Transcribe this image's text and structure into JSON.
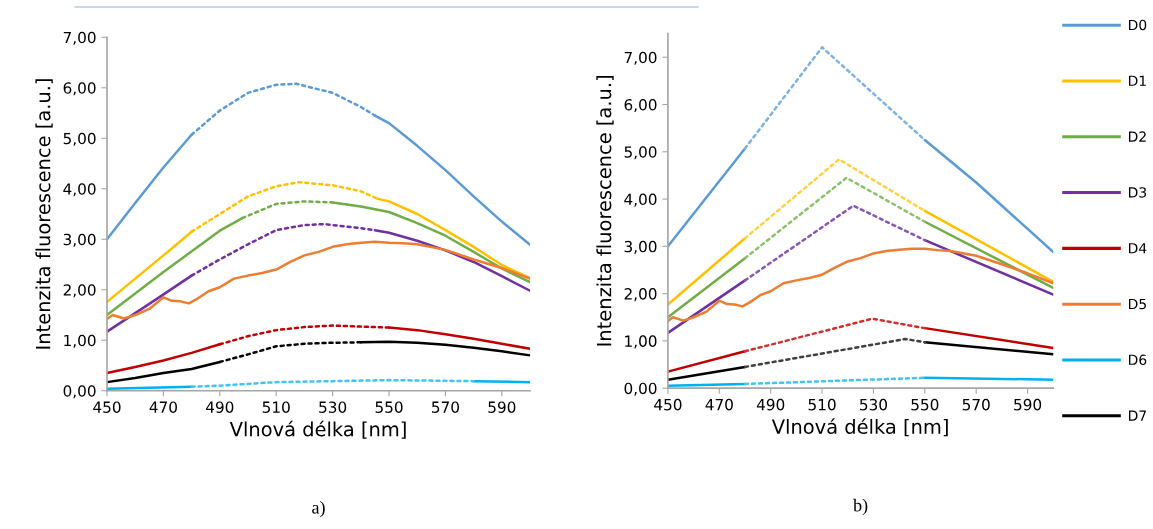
{
  "chart_data": [
    {
      "type": "line",
      "xlabel": "Vlnová délka [nm]",
      "ylabel": "Intenzita fluorescence [a.u.]",
      "annotations": [
        "a)"
      ],
      "xlim": [
        450,
        600
      ],
      "xticks": [
        450,
        470,
        490,
        510,
        530,
        550,
        570,
        590
      ],
      "ylim": [
        0,
        7
      ],
      "yticks": [
        {
          "value": 0,
          "label": "0,00"
        },
        {
          "value": 1,
          "label": "1,00"
        },
        {
          "value": 2,
          "label": "2,00"
        },
        {
          "value": 3,
          "label": "3,00"
        },
        {
          "value": 4,
          "label": "4,00"
        },
        {
          "value": 5,
          "label": "5,00"
        },
        {
          "value": 6,
          "label": "6,00"
        },
        {
          "value": 7,
          "label": "7,00"
        }
      ],
      "grid": false,
      "legend": false,
      "marker": "none",
      "line_style": "solid",
      "series": [
        {
          "color": "#5b9bd5",
          "x": [
            450,
            460,
            470,
            480,
            null,
            545,
            550,
            560,
            570,
            580,
            590,
            600
          ],
          "values": [
            3.0,
            3.72,
            4.42,
            5.07,
            null,
            5.45,
            5.3,
            4.85,
            4.37,
            3.85,
            3.35,
            2.89
          ]
        },
        {
          "color": "#5b9bd5",
          "line_style": "dotted",
          "x": [
            480,
            490,
            500,
            510,
            517,
            530,
            540,
            545
          ],
          "values": [
            5.07,
            5.55,
            5.9,
            6.06,
            6.08,
            5.9,
            5.62,
            5.45
          ]
        },
        {
          "color": "#ffc000",
          "x": [
            450,
            460,
            470,
            480,
            null,
            546,
            550,
            560,
            570,
            580,
            590,
            600
          ],
          "values": [
            1.76,
            2.22,
            2.68,
            3.15,
            null,
            3.8,
            3.75,
            3.5,
            3.18,
            2.85,
            2.49,
            2.23
          ]
        },
        {
          "color": "#ffc000",
          "line_style": "dotted",
          "x": [
            480,
            490,
            500,
            510,
            518,
            530,
            540,
            546
          ],
          "values": [
            3.15,
            3.5,
            3.85,
            4.05,
            4.13,
            4.07,
            3.95,
            3.8
          ]
        },
        {
          "color": "#70ad47",
          "x": [
            450,
            470,
            490,
            498,
            null,
            530,
            540,
            550,
            560,
            570,
            580,
            590,
            600
          ],
          "values": [
            1.5,
            2.35,
            3.17,
            3.42,
            null,
            3.73,
            3.65,
            3.54,
            3.32,
            3.07,
            2.75,
            2.42,
            2.15
          ]
        },
        {
          "color": "#70ad47",
          "line_style": "dotted",
          "x": [
            498,
            510,
            520,
            530
          ],
          "values": [
            3.42,
            3.7,
            3.75,
            3.73
          ]
        },
        {
          "color": "#7030a0",
          "x": [
            450,
            465,
            480,
            null,
            545,
            550,
            560,
            570,
            580,
            590,
            600
          ],
          "values": [
            1.17,
            1.72,
            2.28,
            null,
            3.18,
            3.13,
            2.97,
            2.78,
            2.55,
            2.27,
            1.98
          ]
        },
        {
          "color": "#7030a0",
          "line_style": "dotted",
          "x": [
            480,
            490,
            500,
            510,
            520,
            527,
            540,
            545
          ],
          "values": [
            2.28,
            2.6,
            2.9,
            3.18,
            3.28,
            3.3,
            3.22,
            3.18
          ]
        },
        {
          "color": "#c00000",
          "x": [
            450,
            460,
            470,
            480,
            490,
            null,
            550,
            560,
            570,
            580,
            590,
            600
          ],
          "values": [
            0.35,
            0.47,
            0.6,
            0.75,
            0.92,
            null,
            1.25,
            1.2,
            1.12,
            1.03,
            0.93,
            0.83
          ]
        },
        {
          "color": "#c00000",
          "line_style": "dotted",
          "x": [
            490,
            500,
            510,
            520,
            530,
            540,
            550
          ],
          "values": [
            0.92,
            1.08,
            1.2,
            1.26,
            1.29,
            1.27,
            1.25
          ]
        },
        {
          "color": "#ed7d31",
          "x": [
            450,
            452,
            456,
            460,
            465,
            470,
            473,
            476,
            479,
            482,
            486,
            490,
            495,
            500,
            505,
            510,
            515,
            520,
            525,
            530,
            535,
            540,
            545,
            550,
            555,
            560,
            570,
            580,
            590,
            600
          ],
          "values": [
            1.42,
            1.5,
            1.43,
            1.5,
            1.62,
            1.85,
            1.78,
            1.77,
            1.73,
            1.82,
            1.97,
            2.05,
            2.22,
            2.28,
            2.33,
            2.4,
            2.55,
            2.68,
            2.75,
            2.85,
            2.9,
            2.93,
            2.95,
            2.93,
            2.92,
            2.9,
            2.79,
            2.6,
            2.43,
            2.22
          ]
        },
        {
          "color": "#00b0f0",
          "x": [
            450,
            480,
            null,
            580,
            600
          ],
          "values": [
            0.04,
            0.08,
            null,
            0.19,
            0.17
          ]
        },
        {
          "color": "#40c4f4",
          "line_style": "dotted",
          "x": [
            480,
            490,
            510,
            530,
            550,
            580
          ],
          "values": [
            0.08,
            0.1,
            0.17,
            0.19,
            0.21,
            0.19
          ]
        },
        {
          "color": "#000000",
          "x": [
            450,
            460,
            470,
            480,
            490,
            null,
            540,
            550,
            560,
            570,
            580,
            590,
            600
          ],
          "values": [
            0.17,
            0.25,
            0.35,
            0.43,
            0.57,
            null,
            0.96,
            0.97,
            0.95,
            0.91,
            0.85,
            0.78,
            0.7
          ]
        },
        {
          "color": "#000000",
          "line_style": "dotted",
          "x": [
            490,
            500,
            510,
            520,
            530,
            540
          ],
          "values": [
            0.57,
            0.72,
            0.88,
            0.93,
            0.95,
            0.96
          ]
        }
      ]
    },
    {
      "type": "line",
      "xlabel": "Vlnová délka [nm]",
      "ylabel": "Intenzita fluorescence [a.u.]",
      "annotations": [
        "b)"
      ],
      "xlim": [
        450,
        600
      ],
      "xticks": [
        450,
        470,
        490,
        510,
        530,
        550,
        570,
        590
      ],
      "ylim": [
        0,
        7.5
      ],
      "yticks": [
        {
          "value": 0,
          "label": "0,00"
        },
        {
          "value": 1,
          "label": "1,00"
        },
        {
          "value": 2,
          "label": "2,00"
        },
        {
          "value": 3,
          "label": "3,00"
        },
        {
          "value": 4,
          "label": "4,00"
        },
        {
          "value": 5,
          "label": "5,00"
        },
        {
          "value": 6,
          "label": "6,00"
        },
        {
          "value": 7,
          "label": "7,00"
        }
      ],
      "grid": false,
      "legend": "right",
      "marker": "none",
      "line_style": "solid",
      "series": [
        {
          "name": "D0",
          "color": "#5b9bd5",
          "x": [
            450,
            480,
            null,
            550,
            570,
            600
          ],
          "values": [
            3.0,
            5.07,
            null,
            5.25,
            4.35,
            2.88
          ]
        },
        {
          "color": "#7fb2e2",
          "line_style": "dotted",
          "x": [
            480,
            510,
            550
          ],
          "values": [
            5.07,
            7.21,
            5.25
          ]
        },
        {
          "name": "D1",
          "color": "#ffc000",
          "x": [
            450,
            480,
            null,
            550,
            600
          ],
          "values": [
            1.77,
            3.17,
            null,
            3.75,
            2.25
          ]
        },
        {
          "color": "#ffd040",
          "line_style": "dotted",
          "x": [
            480,
            516.6,
            550
          ],
          "values": [
            3.17,
            4.84,
            3.75
          ]
        },
        {
          "name": "D2",
          "color": "#70ad47",
          "x": [
            450,
            480,
            null,
            550,
            600
          ],
          "values": [
            1.5,
            2.75,
            null,
            3.52,
            2.12
          ]
        },
        {
          "color": "#8cc06a",
          "line_style": "dotted",
          "x": [
            480,
            519.5,
            550
          ],
          "values": [
            2.75,
            4.45,
            3.52
          ]
        },
        {
          "name": "D3",
          "color": "#7030a0",
          "x": [
            450,
            480,
            null,
            550,
            600
          ],
          "values": [
            1.17,
            2.28,
            null,
            3.13,
            1.98
          ]
        },
        {
          "color": "#8a55b5",
          "line_style": "dotted",
          "x": [
            480,
            522.2,
            550
          ],
          "values": [
            2.28,
            3.86,
            3.13
          ]
        },
        {
          "name": "D4",
          "color": "#c00000",
          "x": [
            450,
            480,
            null,
            550,
            600
          ],
          "values": [
            0.35,
            0.78,
            null,
            1.27,
            0.85
          ]
        },
        {
          "color": "#d03030",
          "line_style": "dotted",
          "x": [
            480,
            529.5,
            550
          ],
          "values": [
            0.78,
            1.47,
            1.27
          ]
        },
        {
          "name": "D5",
          "color": "#ed7d31",
          "x": [
            450,
            452,
            456,
            460,
            465,
            470,
            473,
            476,
            479,
            482,
            486,
            490,
            495,
            500,
            505,
            510,
            515,
            520,
            525,
            530,
            535,
            540,
            545,
            550,
            555,
            560,
            570,
            580,
            590,
            600
          ],
          "values": [
            1.42,
            1.5,
            1.43,
            1.5,
            1.62,
            1.85,
            1.78,
            1.77,
            1.73,
            1.82,
            1.97,
            2.05,
            2.22,
            2.28,
            2.33,
            2.4,
            2.55,
            2.68,
            2.75,
            2.85,
            2.9,
            2.93,
            2.95,
            2.95,
            2.92,
            2.9,
            2.8,
            2.62,
            2.43,
            2.22
          ]
        },
        {
          "name": "D6",
          "color": "#00b0f0",
          "x": [
            450,
            480,
            null,
            550,
            600
          ],
          "values": [
            0.05,
            0.09,
            null,
            0.22,
            0.18
          ]
        },
        {
          "color": "#40c4f4",
          "line_style": "dotted",
          "x": [
            480,
            550
          ],
          "values": [
            0.09,
            0.22
          ]
        },
        {
          "name": "D7",
          "color": "#000000",
          "x": [
            450,
            480,
            null,
            550,
            600
          ],
          "values": [
            0.18,
            0.45,
            null,
            0.97,
            0.72
          ]
        },
        {
          "color": "#404040",
          "line_style": "dotted",
          "x": [
            480,
            542.5,
            550
          ],
          "values": [
            0.45,
            1.04,
            0.97
          ]
        }
      ]
    }
  ]
}
